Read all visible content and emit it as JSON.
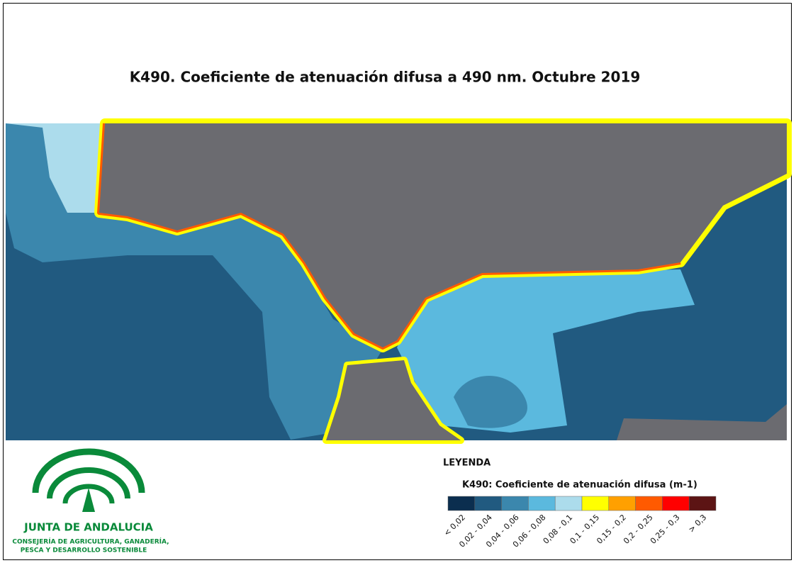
{
  "header": {
    "title": "K490. Coeficiente de atenuación difusa a 490 nm. Octubre 2019"
  },
  "legend": {
    "heading": "LEYENDA",
    "title": "K490: Coeficiente de atenuación difusa (m-1)",
    "classes": [
      {
        "label": "< 0,02",
        "color": "#0b2e4f"
      },
      {
        "label": "0,02 - 0,04",
        "color": "#215a80"
      },
      {
        "label": "0,04 - 0,06",
        "color": "#3b87ad"
      },
      {
        "label": "0,06 - 0,08",
        "color": "#5bb9de"
      },
      {
        "label": "0,08 - 0,1",
        "color": "#acdcec"
      },
      {
        "label": "0,1 - 0,15",
        "color": "#ffff00"
      },
      {
        "label": "0,15 - 0,2",
        "color": "#ffa000"
      },
      {
        "label": "0,2 - 0,25",
        "color": "#ff5a00"
      },
      {
        "label": "0,25 - 0,3",
        "color": "#ff0000"
      },
      {
        "label": "> 0,3",
        "color": "#5c1414"
      }
    ]
  },
  "logo": {
    "name": "JUNTA DE ANDALUCIA",
    "line1": "CONSEJERÍA DE AGRICULTURA, GANADERÍA,",
    "line2": "PESCA Y DESARROLLO SOSTENIBLE"
  }
}
